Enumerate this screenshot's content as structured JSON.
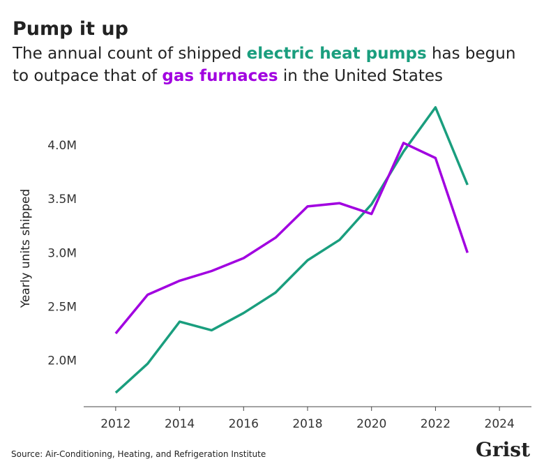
{
  "chart_data": {
    "type": "line",
    "title": "Pump it up",
    "subtitle": [
      [
        {
          "text": "The annual count of shipped "
        },
        {
          "text": "electric heat pumps",
          "color": "#1a9e7e"
        },
        {
          "text": " has begun"
        }
      ],
      [
        {
          "text": "to outpace that of "
        },
        {
          "text": "gas furnaces",
          "color": "#a100e0"
        },
        {
          "text": " in the United States"
        }
      ]
    ],
    "y_label": "Yearly units shipped",
    "source": "Source: Air-Conditioning, Heating, and Refrigeration Institute",
    "logo": "Grist",
    "x": [
      2012,
      2013,
      2014,
      2015,
      2016,
      2017,
      2018,
      2019,
      2020,
      2021,
      2022,
      2023
    ],
    "series": [
      {
        "name": "electric heat pumps",
        "color": "#1a9e7e",
        "values": [
          1700000,
          1970000,
          2360000,
          2280000,
          2440000,
          2630000,
          2930000,
          3120000,
          3450000,
          3940000,
          4350000,
          3630000
        ]
      },
      {
        "name": "gas furnaces",
        "color": "#a100e0",
        "values": [
          2250000,
          2610000,
          2740000,
          2830000,
          2950000,
          3140000,
          3430000,
          3460000,
          3360000,
          4020000,
          3880000,
          3000000
        ]
      }
    ],
    "xlim": [
      2011,
      2025
    ],
    "xticks": [
      2012,
      2014,
      2016,
      2018,
      2020,
      2022,
      2024
    ],
    "ylim": [
      1570000,
      4400000
    ],
    "yticks": [
      {
        "value": 2000000,
        "label": "2.0M"
      },
      {
        "value": 2500000,
        "label": "2.5M"
      },
      {
        "value": 3000000,
        "label": "3.0M"
      },
      {
        "value": 3500000,
        "label": "3.5M"
      },
      {
        "value": 4000000,
        "label": "4.0M"
      }
    ],
    "grid": false
  }
}
